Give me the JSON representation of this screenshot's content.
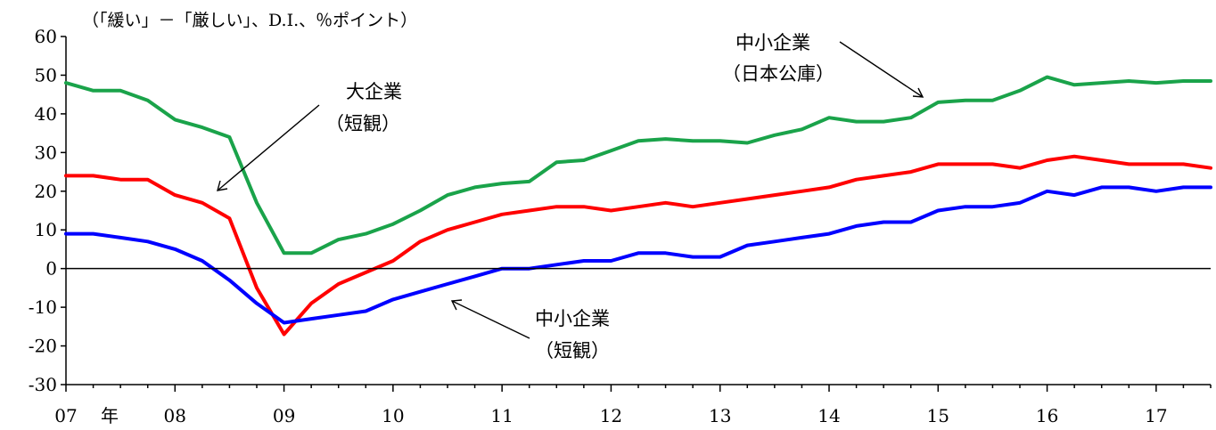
{
  "chart_data": {
    "type": "line",
    "unit_label": "（「緩い」－「厳しい」、D.I.、％ポイント）",
    "year_suffix": "年",
    "ylim": [
      -30,
      60
    ],
    "yticks": [
      -30,
      -20,
      -10,
      0,
      10,
      20,
      30,
      40,
      50,
      60
    ],
    "xlim": [
      2007.0,
      2017.5
    ],
    "xticks": [
      {
        "value": 2007,
        "label": "07"
      },
      {
        "value": 2008,
        "label": "08"
      },
      {
        "value": 2009,
        "label": "09"
      },
      {
        "value": 2010,
        "label": "10"
      },
      {
        "value": 2011,
        "label": "11"
      },
      {
        "value": 2012,
        "label": "12"
      },
      {
        "value": 2013,
        "label": "13"
      },
      {
        "value": 2014,
        "label": "14"
      },
      {
        "value": 2015,
        "label": "15"
      },
      {
        "value": 2016,
        "label": "16"
      },
      {
        "value": 2017,
        "label": "17"
      }
    ],
    "grid": false,
    "legend": "annotations",
    "series": [
      {
        "key": "sme_jfc",
        "color": "#1aa34a",
        "annotation": [
          "中小企業",
          "（日本公庫）"
        ],
        "points": [
          [
            2007.0,
            48
          ],
          [
            2007.25,
            46
          ],
          [
            2007.5,
            46
          ],
          [
            2007.75,
            43.5
          ],
          [
            2008.0,
            38.5
          ],
          [
            2008.25,
            36.5
          ],
          [
            2008.5,
            34
          ],
          [
            2008.75,
            17
          ],
          [
            2009.0,
            4
          ],
          [
            2009.25,
            4
          ],
          [
            2009.5,
            7.5
          ],
          [
            2009.75,
            9
          ],
          [
            2010.0,
            11.5
          ],
          [
            2010.25,
            15
          ],
          [
            2010.5,
            19
          ],
          [
            2010.75,
            21
          ],
          [
            2011.0,
            22
          ],
          [
            2011.25,
            22.5
          ],
          [
            2011.5,
            27.5
          ],
          [
            2011.75,
            28
          ],
          [
            2012.0,
            30.5
          ],
          [
            2012.25,
            33
          ],
          [
            2012.5,
            33.5
          ],
          [
            2012.75,
            33
          ],
          [
            2013.0,
            33
          ],
          [
            2013.25,
            32.5
          ],
          [
            2013.5,
            34.5
          ],
          [
            2013.75,
            36
          ],
          [
            2014.0,
            39
          ],
          [
            2014.25,
            38
          ],
          [
            2014.5,
            38
          ],
          [
            2014.75,
            39
          ],
          [
            2015.0,
            43
          ],
          [
            2015.25,
            43.5
          ],
          [
            2015.5,
            43.5
          ],
          [
            2015.75,
            46
          ],
          [
            2016.0,
            49.5
          ],
          [
            2016.25,
            47.5
          ],
          [
            2016.5,
            48
          ],
          [
            2016.75,
            48.5
          ],
          [
            2017.0,
            48
          ],
          [
            2017.25,
            48.5
          ],
          [
            2017.5,
            48.5
          ]
        ]
      },
      {
        "key": "large_tankan",
        "color": "#ff0000",
        "annotation": [
          "大企業",
          "（短観）"
        ],
        "points": [
          [
            2007.0,
            24
          ],
          [
            2007.25,
            24
          ],
          [
            2007.5,
            23
          ],
          [
            2007.75,
            23
          ],
          [
            2008.0,
            19
          ],
          [
            2008.25,
            17
          ],
          [
            2008.5,
            13
          ],
          [
            2008.75,
            -5
          ],
          [
            2009.0,
            -17
          ],
          [
            2009.25,
            -9
          ],
          [
            2009.5,
            -4
          ],
          [
            2009.75,
            -1
          ],
          [
            2010.0,
            2
          ],
          [
            2010.25,
            7
          ],
          [
            2010.5,
            10
          ],
          [
            2010.75,
            12
          ],
          [
            2011.0,
            14
          ],
          [
            2011.25,
            15
          ],
          [
            2011.5,
            16
          ],
          [
            2011.75,
            16
          ],
          [
            2012.0,
            15
          ],
          [
            2012.25,
            16
          ],
          [
            2012.5,
            17
          ],
          [
            2012.75,
            16
          ],
          [
            2013.0,
            17
          ],
          [
            2013.25,
            18
          ],
          [
            2013.5,
            19
          ],
          [
            2013.75,
            20
          ],
          [
            2014.0,
            21
          ],
          [
            2014.25,
            23
          ],
          [
            2014.5,
            24
          ],
          [
            2014.75,
            25
          ],
          [
            2015.0,
            27
          ],
          [
            2015.25,
            27
          ],
          [
            2015.5,
            27
          ],
          [
            2015.75,
            26
          ],
          [
            2016.0,
            28
          ],
          [
            2016.25,
            29
          ],
          [
            2016.5,
            28
          ],
          [
            2016.75,
            27
          ],
          [
            2017.0,
            27
          ],
          [
            2017.25,
            27
          ],
          [
            2017.5,
            26
          ]
        ]
      },
      {
        "key": "sme_tankan",
        "color": "#0000ff",
        "annotation": [
          "中小企業",
          "（短観）"
        ],
        "points": [
          [
            2007.0,
            9
          ],
          [
            2007.25,
            9
          ],
          [
            2007.5,
            8
          ],
          [
            2007.75,
            7
          ],
          [
            2008.0,
            5
          ],
          [
            2008.25,
            2
          ],
          [
            2008.5,
            -3
          ],
          [
            2008.75,
            -9
          ],
          [
            2009.0,
            -14
          ],
          [
            2009.25,
            -13
          ],
          [
            2009.5,
            -12
          ],
          [
            2009.75,
            -11
          ],
          [
            2010.0,
            -8
          ],
          [
            2010.25,
            -6
          ],
          [
            2010.5,
            -4
          ],
          [
            2010.75,
            -2
          ],
          [
            2011.0,
            0
          ],
          [
            2011.25,
            0
          ],
          [
            2011.5,
            1
          ],
          [
            2011.75,
            2
          ],
          [
            2012.0,
            2
          ],
          [
            2012.25,
            4
          ],
          [
            2012.5,
            4
          ],
          [
            2012.75,
            3
          ],
          [
            2013.0,
            3
          ],
          [
            2013.25,
            6
          ],
          [
            2013.5,
            7
          ],
          [
            2013.75,
            8
          ],
          [
            2014.0,
            9
          ],
          [
            2014.25,
            11
          ],
          [
            2014.5,
            12
          ],
          [
            2014.75,
            12
          ],
          [
            2015.0,
            15
          ],
          [
            2015.25,
            16
          ],
          [
            2015.5,
            16
          ],
          [
            2015.75,
            17
          ],
          [
            2016.0,
            20
          ],
          [
            2016.25,
            19
          ],
          [
            2016.5,
            21
          ],
          [
            2016.75,
            21
          ],
          [
            2017.0,
            20
          ],
          [
            2017.25,
            21
          ],
          [
            2017.5,
            21
          ]
        ]
      }
    ]
  }
}
